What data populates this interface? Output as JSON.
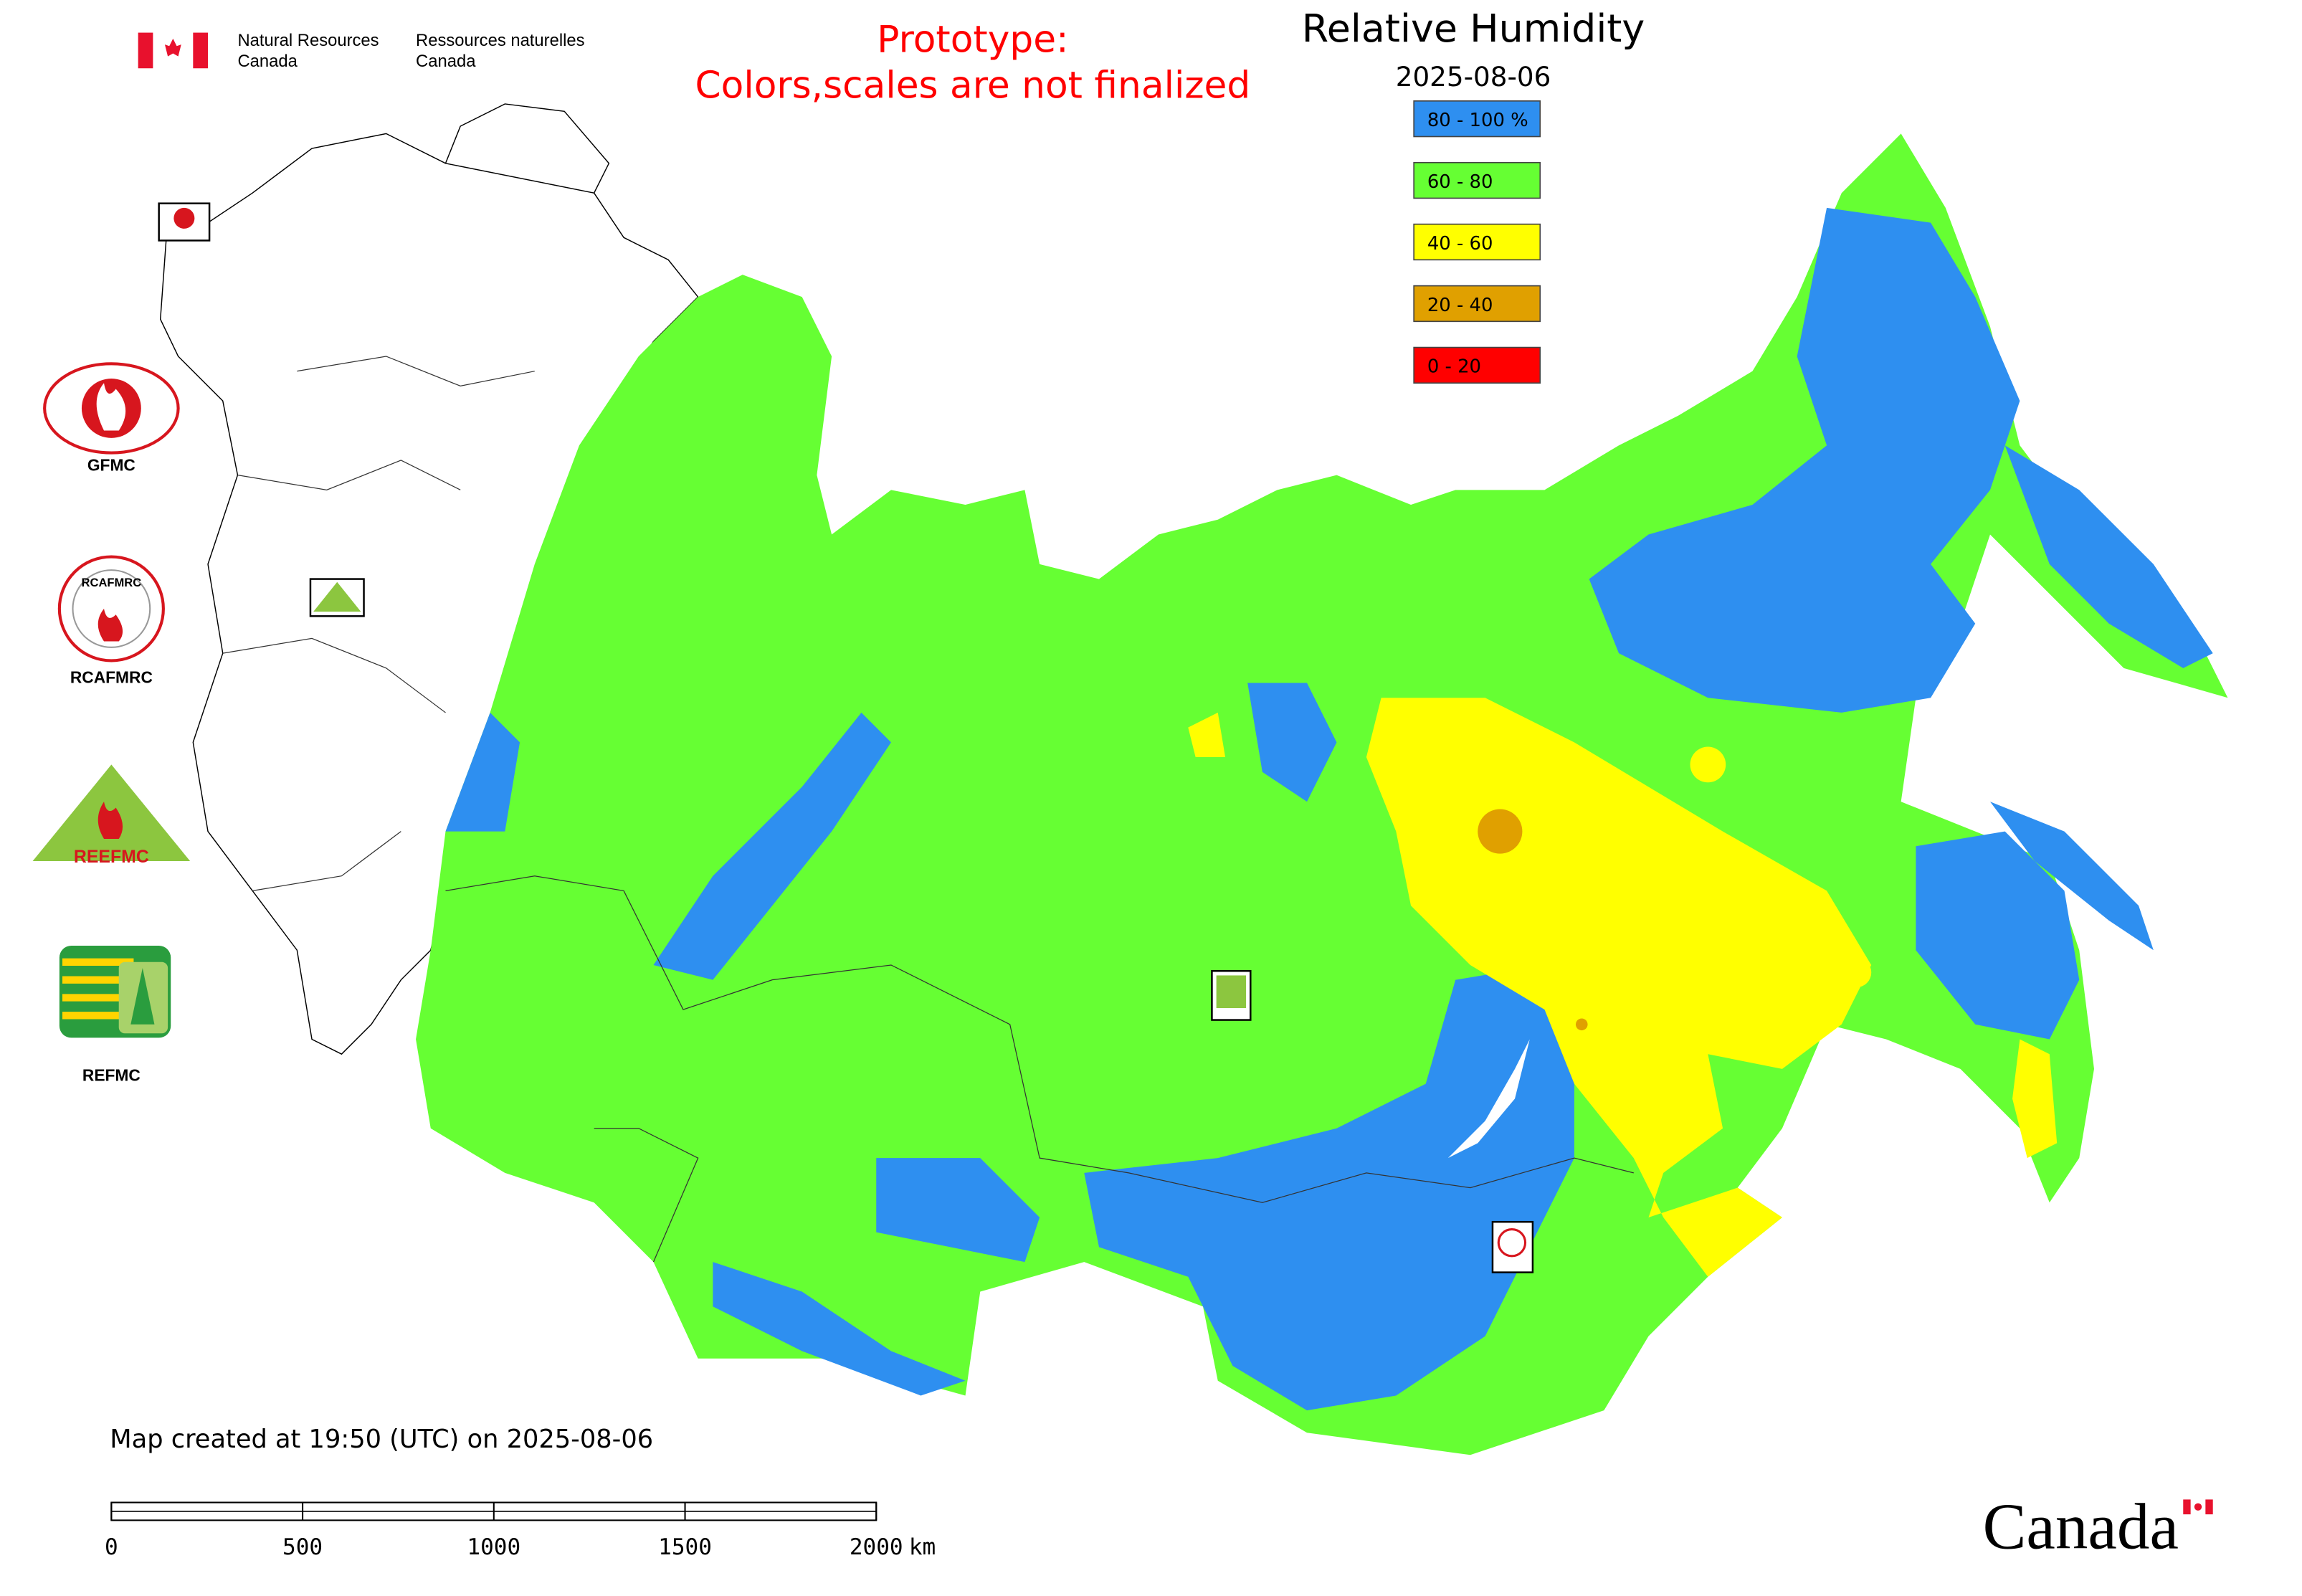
{
  "header": {
    "agency_en": [
      "Natural Resources",
      "Canada"
    ],
    "agency_fr": [
      "Ressources naturelles",
      "Canada"
    ],
    "notice": [
      "Prototype:",
      "Colors,scales are not finalized"
    ],
    "title": "Relative Humidity",
    "date": "2025-08-06"
  },
  "legend": [
    {
      "label": "80 - 100 %",
      "color": "#2e8ff0"
    },
    {
      "label": "60 - 80",
      "color": "#66ff33"
    },
    {
      "label": "40 - 60",
      "color": "#ffff00"
    },
    {
      "label": "20 - 40",
      "color": "#e0a000"
    },
    {
      "label": "0 - 20",
      "color": "#ff0000"
    }
  ],
  "logos": {
    "gfmc": "GFMC",
    "rcafmrc_badge": "RCAFMRC",
    "rcafmrc": "RCAFMRC",
    "reefmc_badge": "REEFMC",
    "refmc": "REFMC"
  },
  "footer": {
    "created": "Map created at 19:50 (UTC) on 2025-08-06",
    "scale_ticks": [
      0,
      500,
      1000,
      1500,
      2000
    ],
    "scale_unit": "km",
    "wordmark": "Canada"
  }
}
